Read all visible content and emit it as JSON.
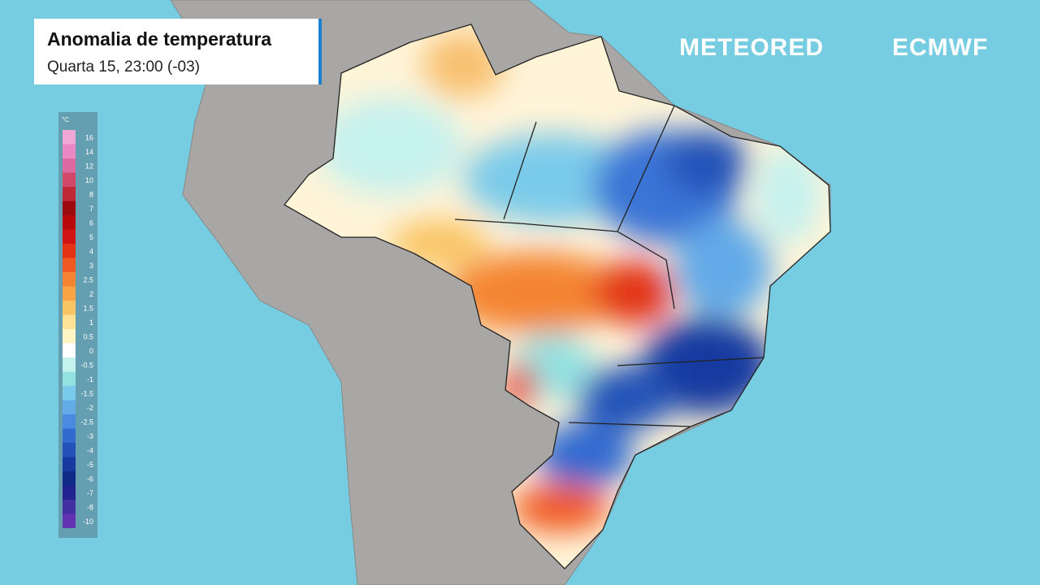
{
  "header": {
    "title": "Anomalia de temperatura",
    "subtitle": "Quarta 15, 23:00 (-03)"
  },
  "brands": [
    "METEORED",
    "ECMWF"
  ],
  "legend": {
    "unit": "°C",
    "items": [
      {
        "value": 16,
        "color": "#f2a8d6"
      },
      {
        "value": 14,
        "color": "#ea88c6"
      },
      {
        "value": 12,
        "color": "#dc6aa0"
      },
      {
        "value": 10,
        "color": "#d24868"
      },
      {
        "value": 8,
        "color": "#c02838"
      },
      {
        "value": 7,
        "color": "#9c0a10"
      },
      {
        "value": 6,
        "color": "#b80a0a"
      },
      {
        "value": 5,
        "color": "#d01414"
      },
      {
        "value": 4,
        "color": "#e23414"
      },
      {
        "value": 3,
        "color": "#f05a22"
      },
      {
        "value": 2.5,
        "color": "#f48432"
      },
      {
        "value": 2,
        "color": "#f8a444"
      },
      {
        "value": 1.5,
        "color": "#f9c464"
      },
      {
        "value": 1,
        "color": "#fce296"
      },
      {
        "value": 0.5,
        "color": "#fff4c4"
      },
      {
        "value": 0,
        "color": "#ffffff"
      },
      {
        "value": -0.5,
        "color": "#c6f2ee"
      },
      {
        "value": -1,
        "color": "#92e2e2"
      },
      {
        "value": -1.5,
        "color": "#7acaea"
      },
      {
        "value": -2,
        "color": "#62aae8"
      },
      {
        "value": -2.5,
        "color": "#4a8ae0"
      },
      {
        "value": -3,
        "color": "#326ad0"
      },
      {
        "value": -4,
        "color": "#2252b8"
      },
      {
        "value": -5,
        "color": "#183aa0"
      },
      {
        "value": -6,
        "color": "#102a88"
      },
      {
        "value": -7,
        "color": "#222290"
      },
      {
        "value": -8,
        "color": "#4030a2"
      },
      {
        "value": -10,
        "color": "#6232b2"
      }
    ]
  }
}
